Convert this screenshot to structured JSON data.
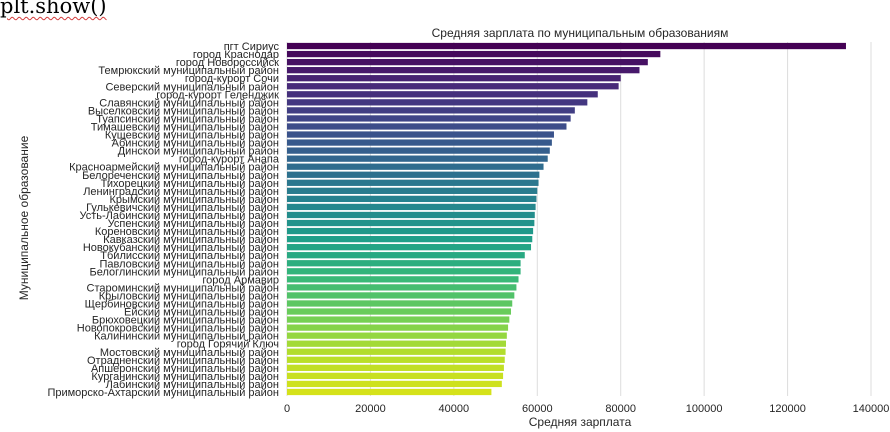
{
  "code_text": "plt.show()",
  "chart_data": {
    "type": "bar",
    "orientation": "horizontal",
    "title": "Средняя зарплата по муниципальным образованиям",
    "xlabel": "Средняя зарплата",
    "ylabel": "Муниципальное образование",
    "xlim": [
      0,
      140000
    ],
    "xticks": [
      0,
      20000,
      40000,
      60000,
      80000,
      100000,
      120000,
      140000
    ],
    "grid": "vertical",
    "palette": "viridis",
    "colors": {
      "start": "#440154",
      "end": "#d5e21a",
      "grid": "#dddddd",
      "background": "#ffffff"
    },
    "categories": [
      "пгт Сириус",
      "город Краснодар",
      "город Новороссийск",
      "Темрюкский муниципальный район",
      "город-курорт Сочи",
      "Северский муниципальный район",
      "город-курорт Геленджик",
      "Славянский муниципальный район",
      "Выселковский муниципальный район",
      "Туапсинский муниципальный район",
      "Тимашевский муниципальный район",
      "Кущевский муниципальный район",
      "Абинский муниципальный район",
      "Динской муниципальный район",
      "город-курорт Анапа",
      "Красноармейский муниципальный район",
      "Белореченский муниципальный район",
      "Тихорецкий муниципальный район",
      "Ленинградский муниципальный район",
      "Крымский муниципальный район",
      "Гулькевичский муниципальный район",
      "Усть-Лабинский муниципальный район",
      "Успенский муниципальный район",
      "Кореновский муниципальный район",
      "Кавказский муниципальный район",
      "Новокубанский муниципальный район",
      "Тбилисский муниципальный район",
      "Павловский муниципальный район",
      "Белоглинский муниципальный район",
      "город Армавир",
      "Староминский муниципальный район",
      "Крыловский муниципальный район",
      "Щербиновский муниципальный район",
      "Ейский муниципальный район",
      "Брюховецкий муниципальный район",
      "Новопокровский муниципальный район",
      "Калининский муниципальный район",
      "город Горячий Ключ",
      "Мостовский муниципальный район",
      "Отрадненский муниципальный район",
      "Апшеронский муниципальный район",
      "Курганинский муниципальный район",
      "Лабинский муниципальный район",
      "Приморско-Ахтарский муниципальный район"
    ],
    "values": [
      134000,
      89500,
      86500,
      84500,
      80000,
      79500,
      74500,
      72000,
      69000,
      68000,
      67000,
      64000,
      63500,
      63000,
      62500,
      61500,
      60500,
      60300,
      60000,
      59800,
      59600,
      59400,
      59300,
      59000,
      58800,
      58500,
      57000,
      56000,
      56000,
      55500,
      55000,
      54500,
      54000,
      53700,
      53300,
      53000,
      52700,
      52500,
      52400,
      52200,
      52000,
      51800,
      51500,
      49000
    ]
  }
}
